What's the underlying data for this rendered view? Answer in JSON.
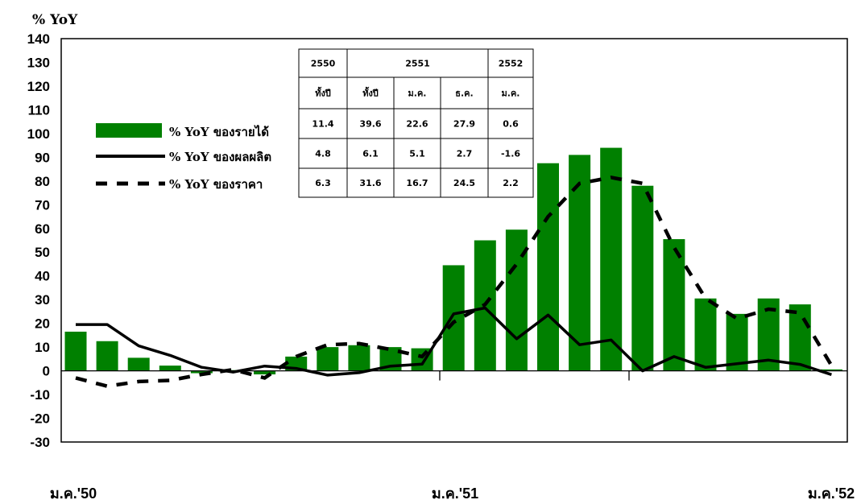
{
  "chart_data": {
    "type": "bar",
    "ylabel": "% YoY",
    "ylim": [
      -30,
      140
    ],
    "yticks": [
      140,
      130,
      120,
      110,
      100,
      90,
      80,
      70,
      60,
      50,
      40,
      30,
      20,
      10,
      0,
      -10,
      -20,
      -30
    ],
    "x_tick_labels": [
      "ม.ค.'50",
      "ม.ค.'51",
      "ม.ค.'52"
    ],
    "grid": false,
    "legend_placement": "upper-left",
    "series": [
      {
        "name": "% YoY ของรายได้",
        "kind": "bar",
        "color": "#008000",
        "values": [
          16.5,
          12.5,
          5.5,
          2.2,
          -1.0,
          0.3,
          -1.5,
          6.0,
          10.0,
          10.8,
          10.0,
          9.5,
          44.5,
          55.0,
          59.5,
          87.5,
          91.0,
          94.0,
          78.0,
          55.5,
          30.5,
          24.0,
          30.5,
          28.0,
          0.6
        ]
      },
      {
        "name": "% YoY ของผลผลิต",
        "kind": "line",
        "color": "#000000",
        "values": [
          19.5,
          19.5,
          10.5,
          6.5,
          1.5,
          -0.5,
          2.0,
          1.0,
          -1.8,
          -0.8,
          2.0,
          2.8,
          24.0,
          26.5,
          13.5,
          23.5,
          11.0,
          13.0,
          0.0,
          6.0,
          1.5,
          3.0,
          4.5,
          2.7,
          -1.6
        ]
      },
      {
        "name": "% YoY ของราคา",
        "kind": "dashed-line",
        "color": "#000000",
        "values": [
          -3.0,
          -6.5,
          -4.5,
          -4.0,
          -1.5,
          0.5,
          -3.0,
          6.0,
          11.0,
          11.5,
          9.0,
          6.0,
          20.5,
          28.0,
          45.0,
          65.0,
          79.0,
          81.5,
          79.0,
          52.0,
          30.5,
          22.0,
          26.0,
          24.5,
          2.2
        ]
      }
    ],
    "table": {
      "years": [
        "2550",
        "2551",
        "2552"
      ],
      "subheaders": [
        "ทั้งปี",
        "ทั้งปี",
        "ม.ค.",
        "ธ.ค.",
        "ม.ค."
      ],
      "rows": [
        [
          "11.4",
          "39.6",
          "22.6",
          "27.9",
          "0.6"
        ],
        [
          "4.8",
          "6.1",
          "5.1",
          "2.7",
          "-1.6"
        ],
        [
          "6.3",
          "31.6",
          "16.7",
          "24.5",
          "2.2"
        ]
      ]
    }
  }
}
